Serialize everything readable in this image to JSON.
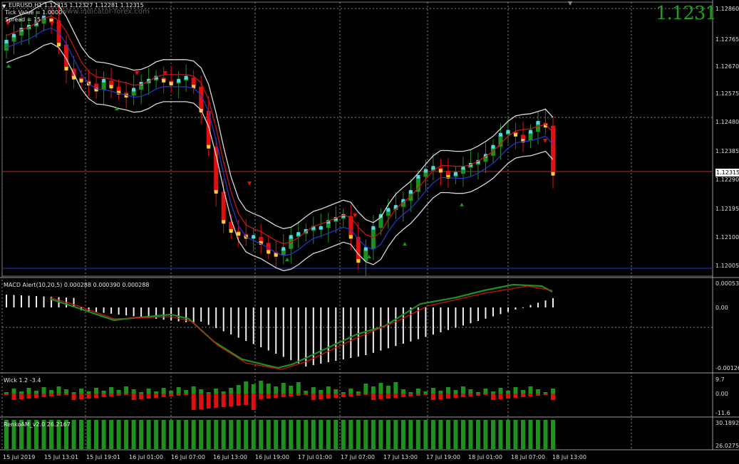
{
  "window": {
    "symbol_line": "EURUSD,H1  1.12315 1.12327 1.12281 1.12315",
    "tick_value": "Tick Value = 1.0000",
    "spread": "Spread = 15",
    "watermark": "www.indicator-forex.com",
    "big_price": "1.1231",
    "current_price_tag": "1.12315",
    "collapse_arrow": "▼",
    "scroll_marker": "▼"
  },
  "price_axis": {
    "ticks": [
      "1.12860",
      "1.12765",
      "1.12670",
      "1.12575",
      "1.12480",
      "1.12385",
      "1.12290",
      "1.12195",
      "1.12100",
      "1.12005"
    ]
  },
  "macd_panel": {
    "title": "MACD Alert(10,20,5) 0.000288 0.000390 0.000288",
    "ticks": [
      "0.000534",
      "0.00",
      "-0.00126"
    ]
  },
  "wick_panel": {
    "title": "Wick 1.2 -3.4",
    "ticks": [
      "9.7",
      "0.00",
      "-11.6"
    ]
  },
  "renko_panel": {
    "title": "RenkoAM_v2.0 26.2167",
    "ticks": [
      "30.1892",
      "26.0275"
    ]
  },
  "time_axis": {
    "labels": [
      "15 Jul 2019",
      "15 Jul 13:01",
      "15 Jul 19:01",
      "16 Jul 01:00",
      "16 Jul 07:00",
      "16 Jul 13:00",
      "16 Jul 19:00",
      "17 Jul 01:00",
      "17 Jul 07:00",
      "17 Jul 13:00",
      "17 Jul 19:00",
      "18 Jul 01:00",
      "18 Jul 07:00",
      "18 Jul 13:00"
    ]
  },
  "colors": {
    "bull": "#1f8f1f",
    "bear": "#e01010",
    "cyan_dot": "#4fd8e8",
    "yellow_dot": "#f2d23c",
    "envelope": "#d8d8d8",
    "grid": "#8a8a8a",
    "current_line": "#8b2b2b",
    "low_line": "#1c2fa0"
  },
  "chart_data": {
    "type": "candlestick",
    "closes": [
      1.1275,
      1.1277,
      1.1279,
      1.128,
      1.1281,
      1.1283,
      1.1282,
      1.1274,
      1.1266,
      1.1263,
      1.1262,
      1.1261,
      1.1259,
      1.1262,
      1.126,
      1.1258,
      1.1257,
      1.1259,
      1.1261,
      1.1262,
      1.1263,
      1.1262,
      1.1261,
      1.1262,
      1.1263,
      1.126,
      1.1252,
      1.124,
      1.1225,
      1.1215,
      1.1212,
      1.1211,
      1.121,
      1.121,
      1.1208,
      1.1205,
      1.1204,
      1.1206,
      1.121,
      1.1211,
      1.1212,
      1.1213,
      1.1213,
      1.1215,
      1.1216,
      1.1217,
      1.121,
      1.1202,
      1.1206,
      1.1213,
      1.1217,
      1.1219,
      1.122,
      1.1222,
      1.1225,
      1.123,
      1.1232,
      1.1233,
      1.1232,
      1.123,
      1.1231,
      1.1233,
      1.1234,
      1.1235,
      1.1237,
      1.124,
      1.1244,
      1.1245,
      1.1244,
      1.1242,
      1.1245,
      1.1248,
      1.1247,
      1.1231
    ]
  }
}
